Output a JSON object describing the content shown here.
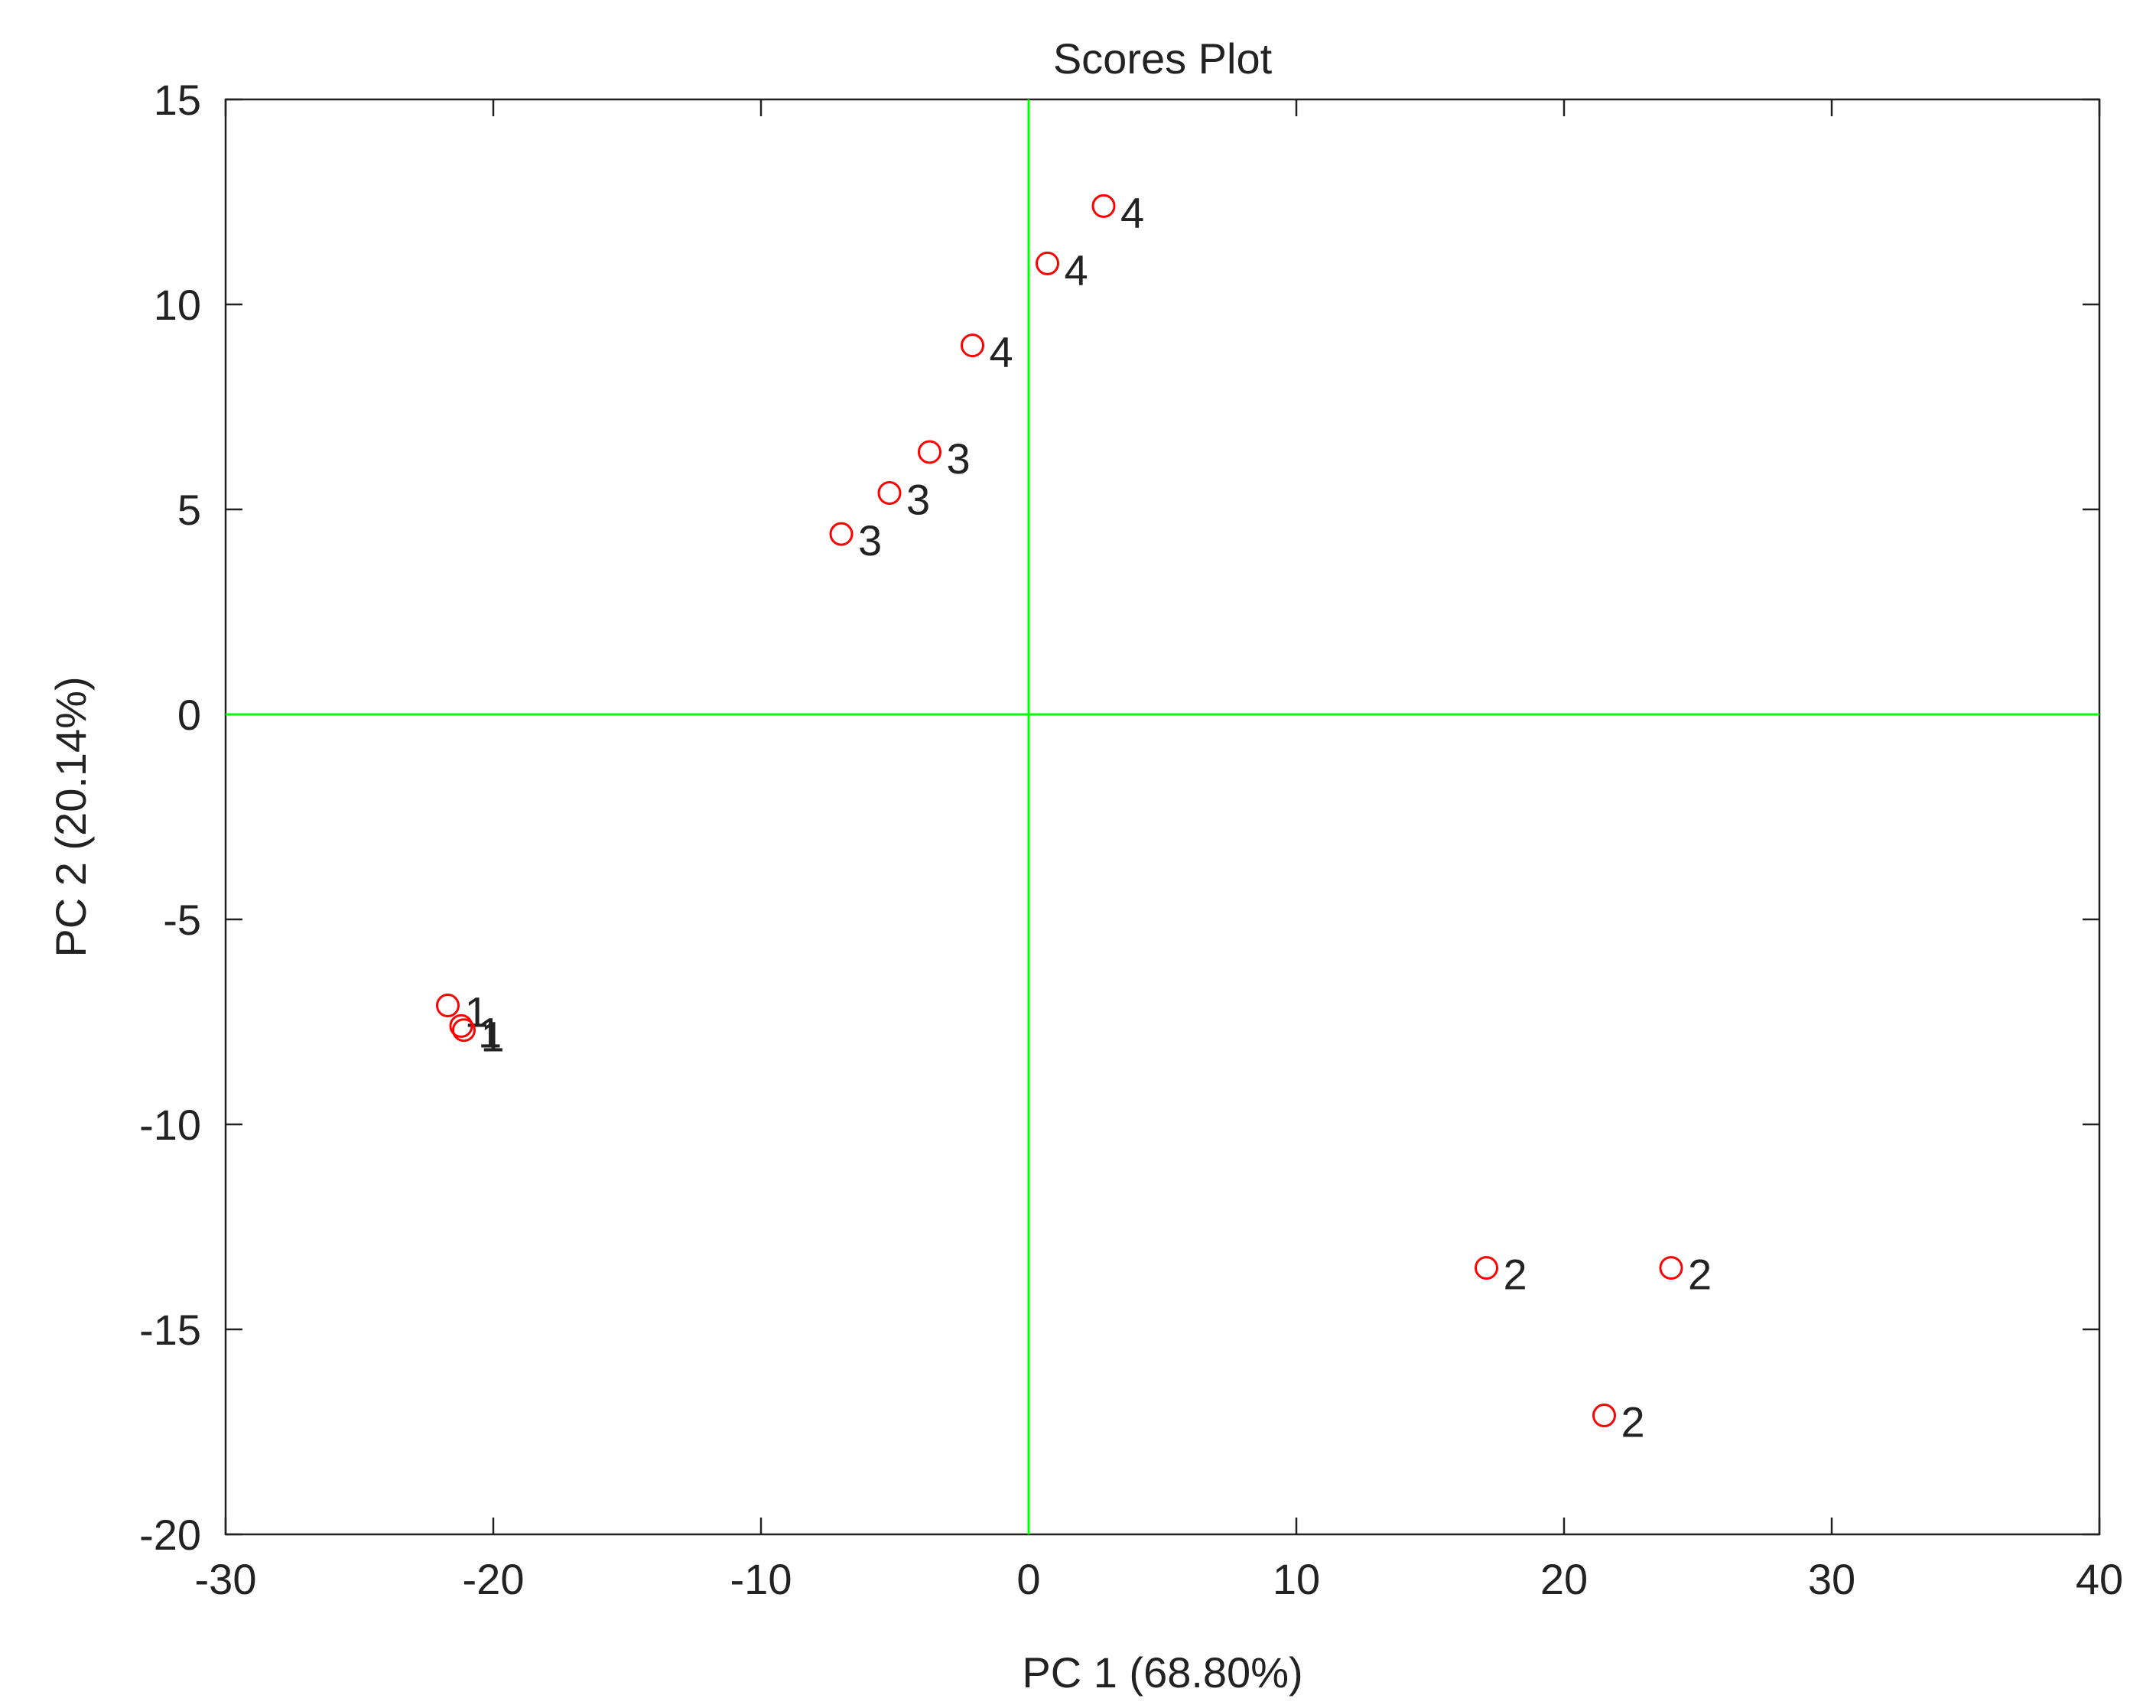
{
  "chart_data": {
    "type": "scatter",
    "title": "Scores Plot",
    "x_label": "PC 1 (68.80%)",
    "y_label": "PC 2 (20.14%)",
    "x": [
      2.8,
      0.7,
      -2.1,
      -3.7,
      -5.2,
      -7.0,
      -21.7,
      -21.2,
      -21.1,
      17.1,
      24.0,
      21.5
    ],
    "values": [
      12.4,
      11.0,
      9.0,
      6.4,
      5.4,
      4.4,
      -7.1,
      -7.6,
      -7.7,
      -13.5,
      -13.5,
      -17.1
    ],
    "labels": [
      "4",
      "4",
      "4",
      "3",
      "3",
      "3",
      "1",
      "1",
      "1",
      "2",
      "2",
      "2"
    ],
    "color": "#ff0000",
    "marker": "open-circle",
    "xlim": [
      -30,
      40
    ],
    "xticks": [
      -30,
      -20,
      -10,
      0,
      10,
      20,
      30,
      40
    ],
    "ylim": [
      -20,
      15
    ],
    "yticks": [
      -20,
      -15,
      -10,
      -5,
      0,
      5,
      10,
      15
    ],
    "reference_lines": {
      "x": 0,
      "y": 0,
      "color": "#00ff00"
    }
  }
}
